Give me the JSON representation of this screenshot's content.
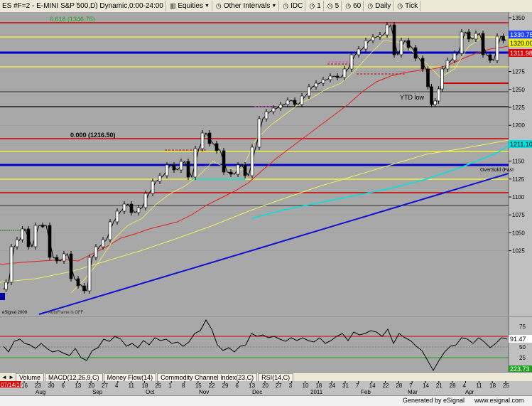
{
  "toolbar": {
    "symbol": "ES #F=2 - E-MINI S&P 500,D) Dynamic,0:00-24:00",
    "equities": "Equities",
    "other_intervals": "Other Intervals",
    "intervals": [
      "IDC",
      "1",
      "5",
      "60",
      "Daily",
      "Tick"
    ]
  },
  "price_panel": {
    "price_labels": [
      "1350",
      "1325",
      "1300",
      "1275",
      "1250",
      "1225",
      "1200",
      "1175",
      "1150",
      "1125",
      "1100",
      "1075",
      "1050",
      "1025"
    ],
    "fib_top": "0.618 (1346.75)",
    "fib_mid": "0.000 (1216.50)",
    "ytd_low": "YTD low",
    "oversold": "OverSold (Fast",
    "watermark": "eSignal 2009",
    "autoframe": "AutoFrame is OFF",
    "tags": {
      "price_1": "1330.75",
      "price_2": "1320.00",
      "price_3": "1311.98",
      "price_4": "1211.10"
    },
    "colors": {
      "background": "#a8a8a8",
      "red_level": "#d00000",
      "blue_level": "#0000c8",
      "yellow_level": "#f0f040",
      "dark_level": "#202020",
      "green_dotted": "#208020",
      "ma_red": "#e02020",
      "ma_yellow": "#f0f060",
      "ma_cyan": "#00e0e0",
      "trend_blue": "#1010d0",
      "candle_up": "#ffffff",
      "candle_down": "#000000"
    }
  },
  "rsi_panel": {
    "labels": [
      "75",
      "50",
      "25"
    ],
    "tag_high": "91.47",
    "tag_low": "223.73"
  },
  "tabs": [
    "Volume",
    "MACD(12,26,9,C)",
    "Money Flow(14)",
    "Commodity Channel Index(23,C)",
    "RSI(14,C)"
  ],
  "date_axis": {
    "first_date": "07/14/10",
    "days": [
      "16",
      "23",
      "30",
      "6",
      "13",
      "20",
      "27",
      "4",
      "11",
      "18",
      "25",
      "1",
      "8",
      "15",
      "22",
      "29",
      "6",
      "13",
      "20",
      "27",
      "3",
      "10",
      "18",
      "24",
      "31",
      "7",
      "14",
      "22",
      "28",
      "7",
      "14",
      "21",
      "28",
      "4",
      "11",
      "18",
      "25"
    ],
    "months": [
      "Aug",
      "Sep",
      "Oct",
      "Nov",
      "Dec",
      "2011",
      "Feb",
      "Mar",
      "Apr"
    ]
  },
  "footer": {
    "generated": "Generated by eSignal",
    "url": "www.esignal.com"
  }
}
